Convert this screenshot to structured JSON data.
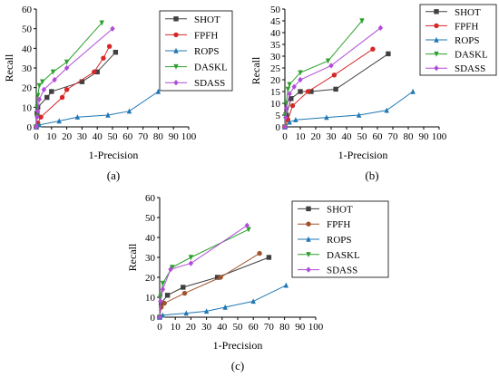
{
  "figure": {
    "captions": [
      "(a)",
      "(b)",
      "(c)"
    ]
  },
  "chart_data": [
    {
      "type": "line",
      "panel": "(a)",
      "xlabel": "1-Precision",
      "ylabel": "Recall",
      "xlim": [
        0,
        100
      ],
      "ylim": [
        0,
        60
      ],
      "xticks": [
        0,
        10,
        20,
        30,
        40,
        50,
        60,
        70,
        80,
        90,
        100
      ],
      "yticks": [
        0,
        10,
        20,
        30,
        40,
        50,
        60
      ],
      "grid": false,
      "legend_position": "top-right",
      "series": [
        {
          "name": "SHOT",
          "color": "#404040",
          "marker": "square",
          "points": [
            [
              0,
              0
            ],
            [
              0.5,
              7
            ],
            [
              1,
              10
            ],
            [
              7,
              15
            ],
            [
              10,
              18
            ],
            [
              30,
              23
            ],
            [
              40,
              28
            ],
            [
              52,
              38
            ]
          ]
        },
        {
          "name": "FPFH",
          "color": "#d62728",
          "marker": "circle",
          "points": [
            [
              0,
              0
            ],
            [
              1,
              2
            ],
            [
              3,
              5
            ],
            [
              17,
              15
            ],
            [
              20,
              19
            ],
            [
              38,
              28
            ],
            [
              44,
              35
            ],
            [
              48,
              41
            ]
          ]
        },
        {
          "name": "ROPS",
          "color": "#1f77b4",
          "marker": "triangle-up",
          "points": [
            [
              0,
              0
            ],
            [
              2,
              1
            ],
            [
              15,
              3
            ],
            [
              27,
              5
            ],
            [
              47,
              6
            ],
            [
              61,
              8
            ],
            [
              80,
              18
            ]
          ]
        },
        {
          "name": "DASKL",
          "color": "#2ca02c",
          "marker": "triangle-down",
          "points": [
            [
              0,
              0
            ],
            [
              0.3,
              5
            ],
            [
              0.6,
              10
            ],
            [
              1,
              16
            ],
            [
              2,
              21
            ],
            [
              4,
              23
            ],
            [
              11,
              28
            ],
            [
              20,
              33
            ],
            [
              43,
              53
            ]
          ]
        },
        {
          "name": "SDASS",
          "color": "#b04dd6",
          "marker": "diamond",
          "points": [
            [
              0,
              0
            ],
            [
              0.5,
              5
            ],
            [
              1,
              8
            ],
            [
              2,
              14
            ],
            [
              5,
              19
            ],
            [
              12,
              24
            ],
            [
              20,
              30
            ],
            [
              50,
              50
            ]
          ]
        }
      ]
    },
    {
      "type": "line",
      "panel": "(b)",
      "xlabel": "1-Precision",
      "ylabel": "Recall",
      "xlim": [
        0,
        100
      ],
      "ylim": [
        0,
        50
      ],
      "xticks": [
        0,
        10,
        20,
        30,
        40,
        50,
        60,
        70,
        80,
        90,
        100
      ],
      "yticks": [
        0,
        5,
        10,
        15,
        20,
        25,
        30,
        35,
        40,
        45,
        50
      ],
      "grid": false,
      "legend_position": "top-right",
      "series": [
        {
          "name": "SHOT",
          "color": "#404040",
          "marker": "square",
          "points": [
            [
              0,
              0
            ],
            [
              1,
              5
            ],
            [
              4,
              12
            ],
            [
              10,
              15
            ],
            [
              17,
              15
            ],
            [
              33,
              16
            ],
            [
              67,
              31
            ]
          ]
        },
        {
          "name": "FPFH",
          "color": "#d62728",
          "marker": "circle",
          "points": [
            [
              0,
              0
            ],
            [
              2,
              3
            ],
            [
              5,
              9
            ],
            [
              15,
              15
            ],
            [
              32,
              22
            ],
            [
              57,
              33
            ]
          ]
        },
        {
          "name": "ROPS",
          "color": "#1f77b4",
          "marker": "triangle-up",
          "points": [
            [
              0,
              0
            ],
            [
              3,
              2
            ],
            [
              7,
              3
            ],
            [
              27,
              4
            ],
            [
              48,
              5
            ],
            [
              66,
              7
            ],
            [
              83,
              15
            ]
          ]
        },
        {
          "name": "DASKL",
          "color": "#2ca02c",
          "marker": "triangle-down",
          "points": [
            [
              0,
              0
            ],
            [
              0.3,
              5
            ],
            [
              0.8,
              10
            ],
            [
              2,
              16
            ],
            [
              3,
              18
            ],
            [
              10,
              23
            ],
            [
              28,
              28
            ],
            [
              50,
              45
            ]
          ]
        },
        {
          "name": "SDASS",
          "color": "#b04dd6",
          "marker": "diamond",
          "points": [
            [
              0,
              0
            ],
            [
              0.5,
              4
            ],
            [
              1,
              8
            ],
            [
              3,
              14
            ],
            [
              6,
              17
            ],
            [
              10,
              20
            ],
            [
              30,
              26
            ],
            [
              62,
              42
            ]
          ]
        }
      ]
    },
    {
      "type": "line",
      "panel": "(c)",
      "xlabel": "1-Precision",
      "ylabel": "Recall",
      "xlim": [
        0,
        100
      ],
      "ylim": [
        0,
        60
      ],
      "xticks": [
        0,
        10,
        20,
        30,
        40,
        50,
        60,
        70,
        80,
        90,
        100
      ],
      "yticks": [
        0,
        10,
        20,
        30,
        40,
        50,
        60
      ],
      "grid": false,
      "legend_position": "top-right",
      "series": [
        {
          "name": "SHOT",
          "color": "#404040",
          "marker": "square",
          "points": [
            [
              0,
              0
            ],
            [
              1,
              7
            ],
            [
              5,
              11
            ],
            [
              15,
              15
            ],
            [
              37,
              20
            ],
            [
              70,
              30
            ]
          ]
        },
        {
          "name": "FPFH",
          "color": "#a0522d",
          "marker": "circle",
          "points": [
            [
              0,
              0
            ],
            [
              1,
              5
            ],
            [
              3,
              7
            ],
            [
              16,
              12
            ],
            [
              39,
              20
            ],
            [
              64,
              32
            ]
          ]
        },
        {
          "name": "ROPS",
          "color": "#1f77b4",
          "marker": "triangle-up",
          "points": [
            [
              0,
              0
            ],
            [
              2,
              1
            ],
            [
              17,
              2
            ],
            [
              30,
              3
            ],
            [
              42,
              5
            ],
            [
              60,
              8
            ],
            [
              81,
              16
            ]
          ]
        },
        {
          "name": "DASKL",
          "color": "#2ca02c",
          "marker": "triangle-down",
          "points": [
            [
              0,
              0
            ],
            [
              0.5,
              10
            ],
            [
              2,
              17
            ],
            [
              8,
              25
            ],
            [
              20,
              30
            ],
            [
              57,
              44
            ]
          ]
        },
        {
          "name": "SDASS",
          "color": "#b04dd6",
          "marker": "diamond",
          "points": [
            [
              0,
              0
            ],
            [
              0.5,
              8
            ],
            [
              2,
              14
            ],
            [
              7,
              24
            ],
            [
              20,
              27
            ],
            [
              56,
              46
            ]
          ]
        }
      ]
    }
  ]
}
